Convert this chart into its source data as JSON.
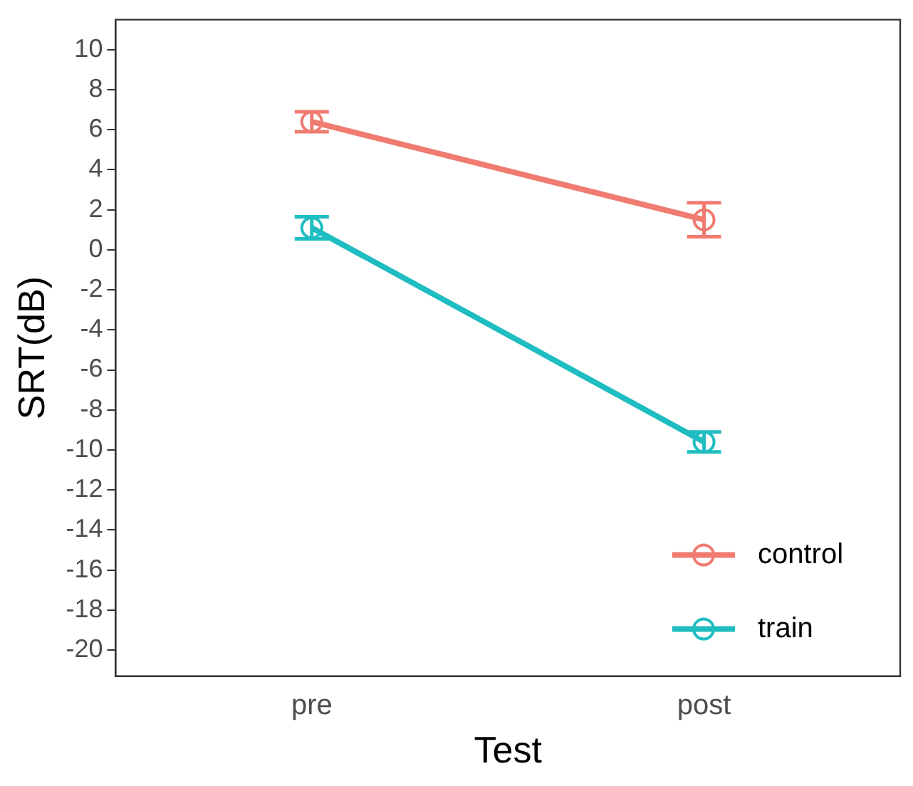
{
  "chart_data": {
    "type": "line",
    "xlabel": "Test",
    "ylabel": "SRT(dB)",
    "categories": [
      "pre",
      "post"
    ],
    "series": [
      {
        "name": "control",
        "color": "#f07b70",
        "values": [
          6.4,
          1.5
        ],
        "errors": [
          0.5,
          0.85
        ]
      },
      {
        "name": "train",
        "color": "#1fbdc2",
        "values": [
          1.1,
          -9.6
        ],
        "errors": [
          0.55,
          0.5
        ]
      }
    ],
    "ylim": [
      -21.3,
      11.5
    ],
    "yticks": [
      -20,
      -18,
      -16,
      -14,
      -12,
      -10,
      -8,
      -6,
      -4,
      -2,
      0,
      2,
      4,
      6,
      8,
      10
    ],
    "grid": false,
    "legend": "bottom right",
    "marker": "circle",
    "line_style": "solid"
  }
}
